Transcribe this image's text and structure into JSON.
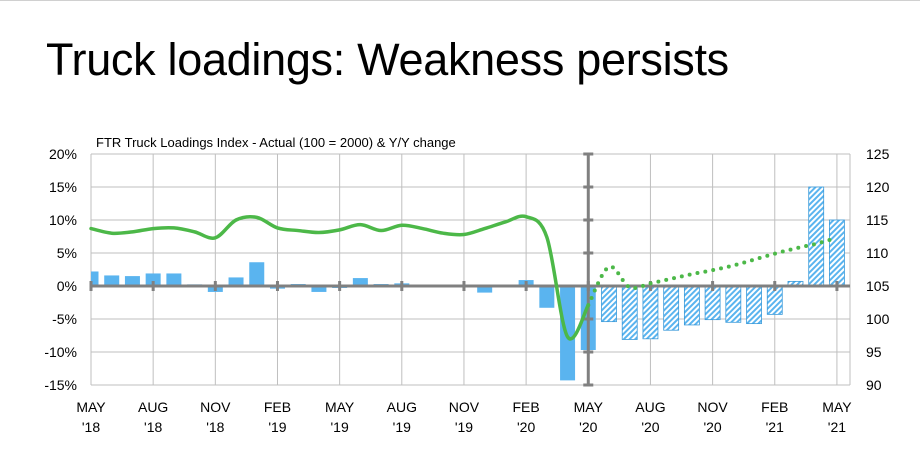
{
  "title": "Truck loadings: Weakness persists",
  "chart_data": {
    "type": "bar+line",
    "title": "FTR Truck Loadings Index - Actual (100 = 2000) & Y/Y change",
    "xlabel": "",
    "ylabel": "",
    "y_left": {
      "lim": [
        -15,
        20
      ],
      "ticks": [
        "-15%",
        "-10%",
        "-5%",
        "0%",
        "5%",
        "10%",
        "15%",
        "20%"
      ]
    },
    "y_right": {
      "lim": [
        90,
        125
      ],
      "ticks": [
        "90",
        "95",
        "100",
        "105",
        "110",
        "115",
        "120",
        "125"
      ]
    },
    "grid": true,
    "months": [
      "May 18",
      "Jun 18",
      "Jul 18",
      "Aug 18",
      "Sep 18",
      "Oct 18",
      "Nov 18",
      "Dec 18",
      "Jan 19",
      "Feb 19",
      "Mar 19",
      "Apr 19",
      "May 19",
      "Jun 19",
      "Jul 19",
      "Aug 19",
      "Sep 19",
      "Oct 19",
      "Nov 19",
      "Dec 19",
      "Jan 20",
      "Feb 20",
      "Mar 20",
      "Apr 20",
      "May 20",
      "Jun 20",
      "Jul 20",
      "Aug 20",
      "Sep 20",
      "Oct 20",
      "Nov 20",
      "Dec 20",
      "Jan 21",
      "Feb 21",
      "Mar 21",
      "Apr 21",
      "May 21"
    ],
    "x_tick_labels": [
      [
        "MAY",
        "'18"
      ],
      [
        "AUG",
        "'18"
      ],
      [
        "NOV",
        "'18"
      ],
      [
        "FEB",
        "'19"
      ],
      [
        "MAY",
        "'19"
      ],
      [
        "AUG",
        "'19"
      ],
      [
        "NOV",
        "'19"
      ],
      [
        "FEB",
        "'20"
      ],
      [
        "MAY",
        "'20"
      ],
      [
        "AUG",
        "'20"
      ],
      [
        "NOV",
        "'20"
      ],
      [
        "FEB",
        "'21"
      ],
      [
        "MAY",
        "'21"
      ]
    ],
    "bars_yy_change_pct": [
      2.2,
      1.6,
      1.5,
      1.9,
      1.9,
      0.25,
      -0.9,
      1.3,
      3.6,
      -0.4,
      0.3,
      -0.9,
      -0.3,
      1.2,
      0.3,
      0.4,
      -0.1,
      -0.1,
      0.2,
      -1.0,
      0,
      0.9,
      -3.3,
      -14.3,
      -9.7,
      -5.4,
      -8.1,
      -8.0,
      -6.7,
      -5.9,
      -5.1,
      -5.5,
      -5.7,
      -4.3,
      0.7,
      15.0,
      10.0
    ],
    "bars_forecast_from_index": 25,
    "index_actual": [
      113.7,
      113.0,
      113.2,
      113.7,
      113.8,
      113.2,
      112.3,
      115.0,
      115.4,
      113.8,
      113.4,
      113.1,
      113.5,
      114.3,
      113.4,
      114.2,
      113.7,
      113.0,
      112.8,
      113.7,
      114.7,
      115.5,
      112.4,
      97.3,
      102.1
    ],
    "index_forecast": [
      102.1,
      107.9,
      104.8,
      105.4,
      106.1,
      106.8,
      107.4,
      108.1,
      109.0,
      109.9,
      110.7,
      111.4,
      112.3
    ],
    "index_forecast_start_month": 24,
    "colors": {
      "bar": "#5ab4ef",
      "bar_edge": "#3a9ad9",
      "line": "#4cb848",
      "grid": "#bfbfbf",
      "axis": "#808080"
    }
  }
}
